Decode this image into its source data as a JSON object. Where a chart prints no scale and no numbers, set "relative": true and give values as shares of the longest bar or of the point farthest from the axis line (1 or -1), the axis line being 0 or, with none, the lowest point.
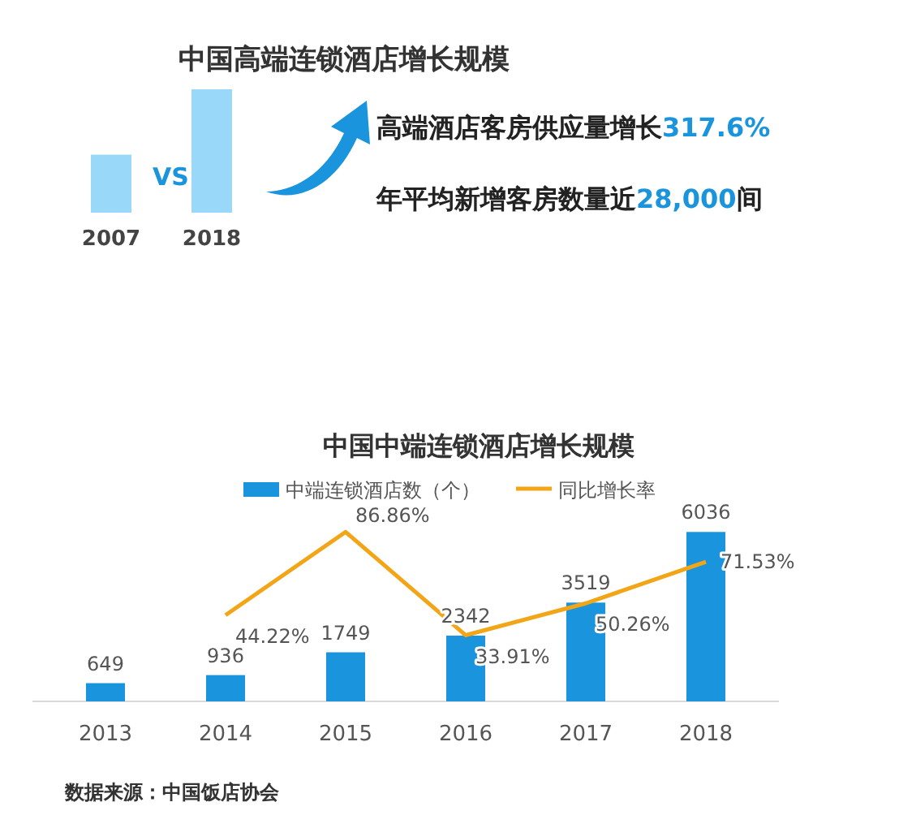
{
  "chart_data": [
    {
      "type": "bar",
      "relative": true,
      "title": "中国高端连锁酒店增长规模",
      "categories": [
        "2007",
        "2018"
      ],
      "values": [
        0.47,
        1
      ],
      "color": "#99d8f8",
      "annotations": [
        "VS",
        "高端酒店客房供应量增长317.6%",
        "年平均新增客房数量近28,000间"
      ]
    },
    {
      "type": "bar",
      "title": "中国中端连锁酒店增长规模",
      "categories": [
        "2013",
        "2014",
        "2015",
        "2016",
        "2017",
        "2018"
      ],
      "legend": "top",
      "series": [
        {
          "name": "中端连锁酒店数（个）",
          "type": "bar",
          "color": "#1a94dc",
          "values": [
            649,
            936,
            1749,
            2342,
            3519,
            6036
          ],
          "value_labels": [
            "649",
            "936",
            "1749",
            "2342",
            "3519",
            "6036"
          ]
        },
        {
          "name": "同比增长率",
          "type": "line",
          "axis": "y2",
          "color": "#f2a516",
          "values": [
            null,
            44.22,
            86.86,
            33.91,
            50.26,
            71.53
          ],
          "value_labels": [
            null,
            "44.22%",
            "86.86%",
            "33.91%",
            "50.26%",
            "71.53%"
          ]
        }
      ],
      "annotations": [
        "数据来源：中国饭店协会"
      ]
    }
  ]
}
